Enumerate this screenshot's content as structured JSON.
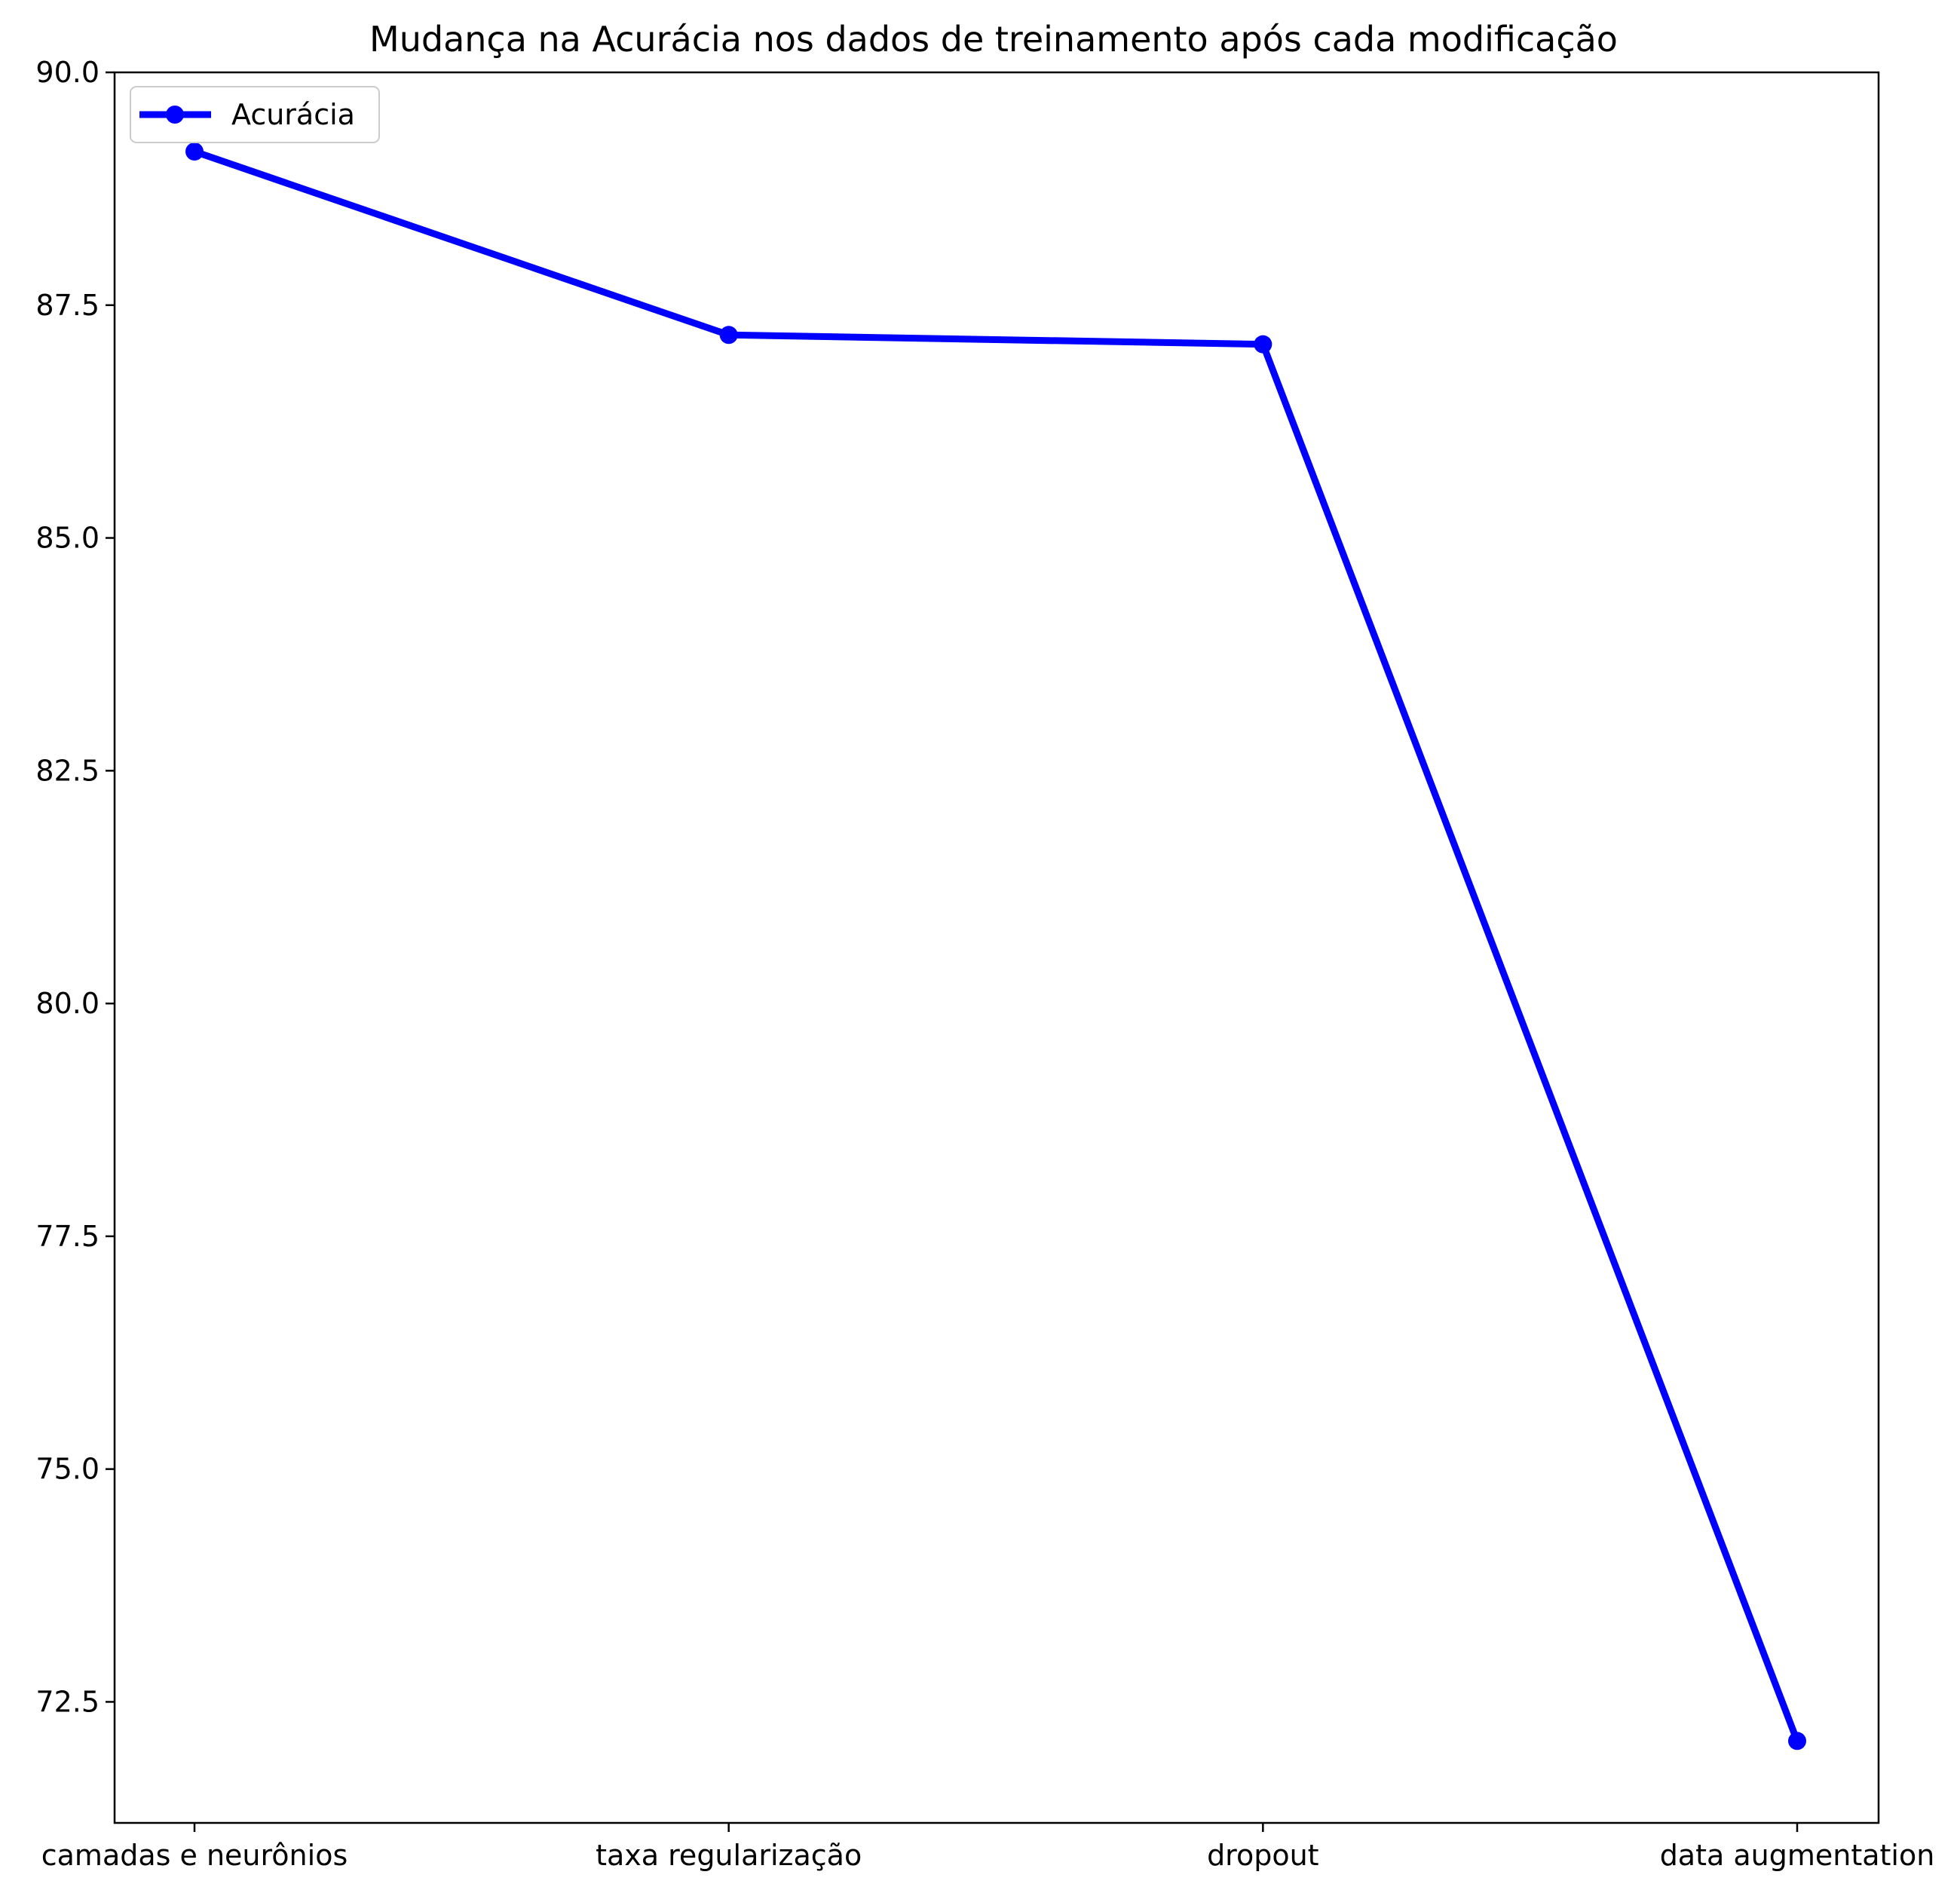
{
  "chart_data": {
    "type": "line",
    "title": "Mudança na Acurácia nos dados de treinamento após cada modificação",
    "xlabel": "",
    "ylabel": "",
    "categories": [
      "camadas e neurônios",
      "taxa regularização",
      "dropout",
      "data augmentation"
    ],
    "series": [
      {
        "name": "Acurácia",
        "values": [
          89.15,
          87.18,
          87.08,
          72.08
        ],
        "color": "#0000ff",
        "marker": "circle"
      }
    ],
    "ylim": [
      71.2,
      90.0
    ],
    "yticks": [
      72.5,
      75.0,
      77.5,
      80.0,
      82.5,
      85.0,
      87.5,
      90.0
    ],
    "ytick_labels": [
      "72.5",
      "75.0",
      "77.5",
      "80.0",
      "82.5",
      "85.0",
      "87.5",
      "90.0"
    ],
    "grid": false,
    "legend_position": "upper-left"
  }
}
